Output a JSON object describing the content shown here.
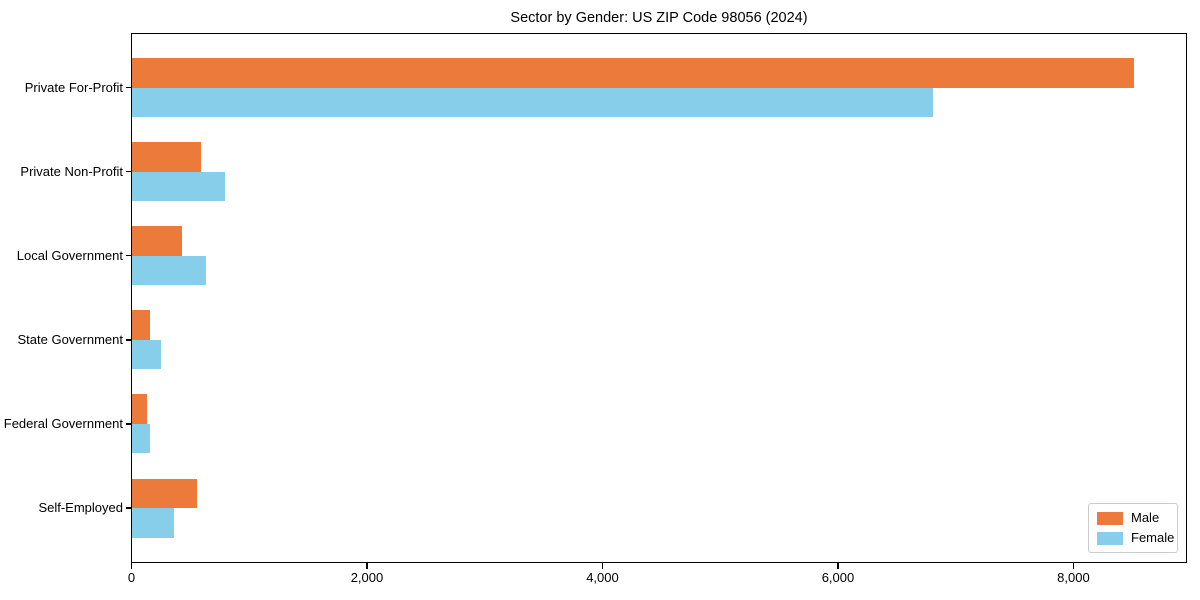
{
  "chart_data": {
    "type": "bar",
    "orientation": "horizontal",
    "title": "Sector by Gender: US ZIP Code 98056 (2024)",
    "categories": [
      "Private For-Profit",
      "Private Non-Profit",
      "Local Government",
      "State Government",
      "Federal Government",
      "Self-Employed"
    ],
    "series": [
      {
        "name": "Male",
        "color": "#EB7A3B",
        "values": [
          8515,
          590,
          425,
          155,
          135,
          555
        ]
      },
      {
        "name": "Female",
        "color": "#87CEEB",
        "values": [
          6805,
          790,
          633,
          250,
          160,
          360
        ]
      }
    ],
    "xlabel": "",
    "ylabel": "",
    "xlim": [
      0,
      8960
    ],
    "x_ticks": [
      0,
      2000,
      4000,
      6000,
      8000
    ],
    "x_tick_labels": [
      "0",
      "2,000",
      "4,000",
      "6,000",
      "8,000"
    ],
    "grid": false,
    "legend_position": "lower-right"
  }
}
